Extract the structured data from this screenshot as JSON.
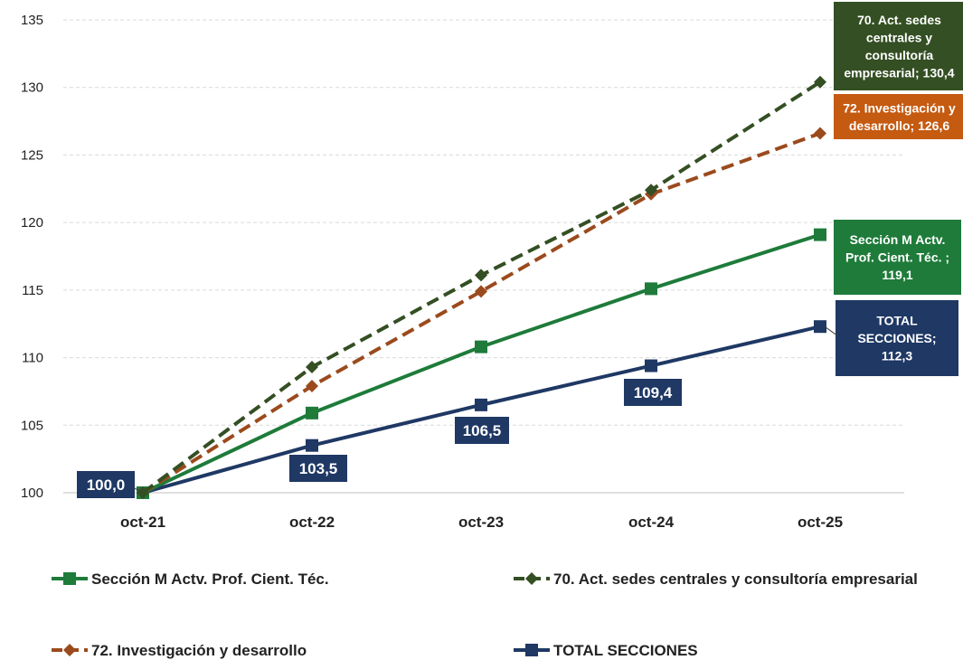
{
  "chart_data": {
    "type": "line",
    "categories": [
      "oct-21",
      "oct-22",
      "oct-23",
      "oct-24",
      "oct-25"
    ],
    "ylim": [
      100,
      135
    ],
    "yticks": [
      100,
      105,
      110,
      115,
      120,
      125,
      130,
      135
    ],
    "grid": true,
    "legend_position": "bottom",
    "series": [
      {
        "name": "Sección M Actv. Prof. Cient. Téc.",
        "values": [
          100.0,
          105.9,
          110.8,
          115.1,
          119.1
        ],
        "color": "#1e7b3a",
        "dash": "solid",
        "marker": "square",
        "end_label": [
          "Sección M Actv.",
          "Prof. Cient. Téc. ;",
          "119,1"
        ]
      },
      {
        "name": "70. Act. sedes centrales y consultoría empresarial",
        "values": [
          100.0,
          109.3,
          116.1,
          122.4,
          130.4
        ],
        "color": "#344f23",
        "dash": "dashed",
        "marker": "diamond",
        "end_label": [
          "70. Act. sedes",
          "centrales y",
          "consultoría",
          "empresarial; 130,4"
        ]
      },
      {
        "name": "72. Investigación y desarrollo",
        "values": [
          100.0,
          107.9,
          114.9,
          122.1,
          126.6
        ],
        "color": "#9b4a1d",
        "dash": "dashed",
        "marker": "diamond",
        "end_label_color": "#c55a11",
        "end_label": [
          "72. Investigación y",
          "desarrollo; 126,6"
        ]
      },
      {
        "name": "TOTAL SECCIONES",
        "values": [
          100.0,
          103.5,
          106.5,
          109.4,
          112.3
        ],
        "color": "#1f3864",
        "dash": "solid",
        "marker": "square",
        "point_labels": [
          "100,0",
          "103,5",
          "106,5",
          "109,4"
        ],
        "end_label": [
          "TOTAL",
          "SECCIONES;",
          "112,3"
        ]
      }
    ]
  }
}
